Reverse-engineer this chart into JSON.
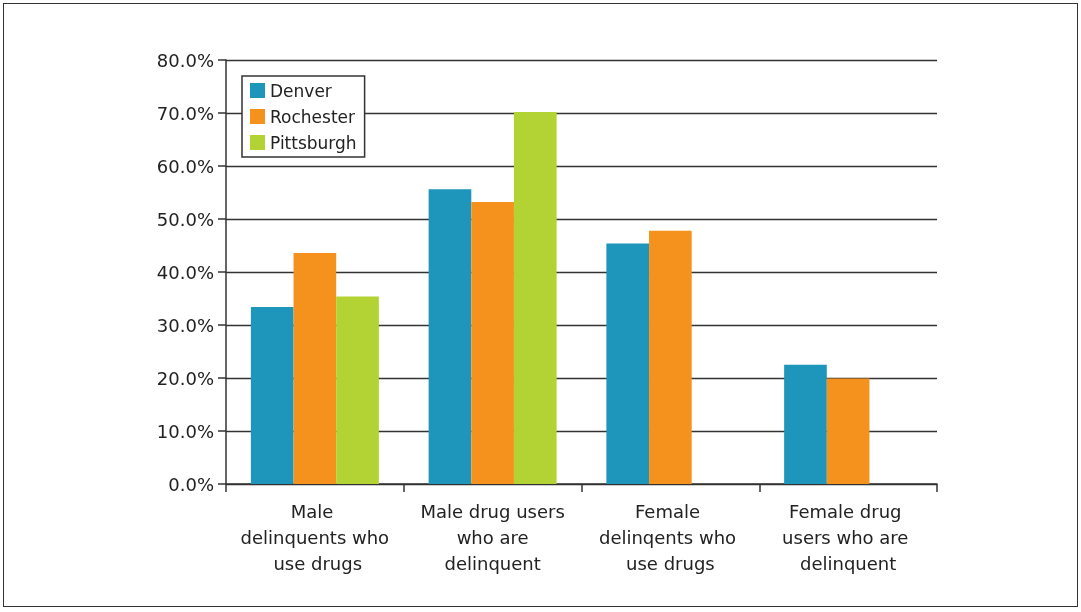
{
  "chart_data": {
    "type": "bar",
    "categories": [
      "Male delinquents who use drugs",
      "Male drug users who are delinquent",
      "Female delinqents who use drugs",
      "Female drug users who are delinquent"
    ],
    "series": [
      {
        "name": "Denver",
        "color": "#1e95bb",
        "values": [
          33.4,
          55.6,
          45.4,
          22.5
        ]
      },
      {
        "name": "Rochester",
        "color": "#f5921e",
        "values": [
          43.6,
          53.2,
          47.8,
          19.9
        ]
      },
      {
        "name": "Pittsburgh",
        "color": "#b3d334",
        "values": [
          35.4,
          70.2,
          null,
          null
        ]
      }
    ],
    "ylim": [
      0,
      80
    ],
    "yticks": [
      {
        "value": 0,
        "label": "0.0%"
      },
      {
        "value": 10,
        "label": "10.0%"
      },
      {
        "value": 20,
        "label": "20.0%"
      },
      {
        "value": 30,
        "label": "30.0%"
      },
      {
        "value": 40,
        "label": "40.0%"
      },
      {
        "value": 50,
        "label": "50.0%"
      },
      {
        "value": 60,
        "label": "60.0%"
      },
      {
        "value": 70,
        "label": "70.0%"
      },
      {
        "value": 80,
        "label": "80.0%"
      }
    ],
    "grid": "y",
    "legend": "top left"
  }
}
